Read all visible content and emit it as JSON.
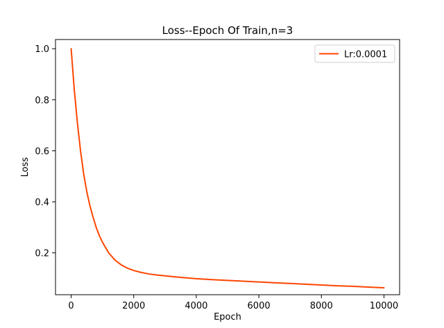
{
  "chart_data": {
    "type": "line",
    "title": "Loss--Epoch Of Train,n=3",
    "xlabel": "Epoch",
    "ylabel": "Loss",
    "xlim": [
      -500,
      10500
    ],
    "ylim": [
      0.036,
      1.036
    ],
    "x_ticks": [
      0,
      2000,
      4000,
      6000,
      8000,
      10000
    ],
    "y_ticks": [
      0.2,
      0.4,
      0.6,
      0.8,
      1.0
    ],
    "x_tick_labels": [
      "0",
      "2000",
      "4000",
      "6000",
      "8000",
      "10000"
    ],
    "y_tick_labels": [
      "0.2",
      "0.4",
      "0.6",
      "0.8",
      "1.0"
    ],
    "grid": false,
    "legend_position": "top-right",
    "series": [
      {
        "name": "Lr:0.0001",
        "color": "#ff4500",
        "x": [
          0,
          100,
          200,
          300,
          400,
          500,
          600,
          700,
          800,
          900,
          1000,
          1200,
          1400,
          1600,
          1800,
          2000,
          2250,
          2500,
          2750,
          3000,
          3500,
          4000,
          4500,
          5000,
          5500,
          6000,
          6500,
          7000,
          7500,
          8000,
          8500,
          9000,
          9500,
          10000
        ],
        "y": [
          1.0,
          0.84,
          0.71,
          0.6,
          0.51,
          0.44,
          0.385,
          0.34,
          0.3,
          0.268,
          0.242,
          0.2,
          0.172,
          0.153,
          0.14,
          0.131,
          0.123,
          0.117,
          0.113,
          0.11,
          0.104,
          0.099,
          0.095,
          0.092,
          0.089,
          0.086,
          0.083,
          0.08,
          0.077,
          0.074,
          0.071,
          0.069,
          0.066,
          0.063
        ]
      }
    ]
  }
}
